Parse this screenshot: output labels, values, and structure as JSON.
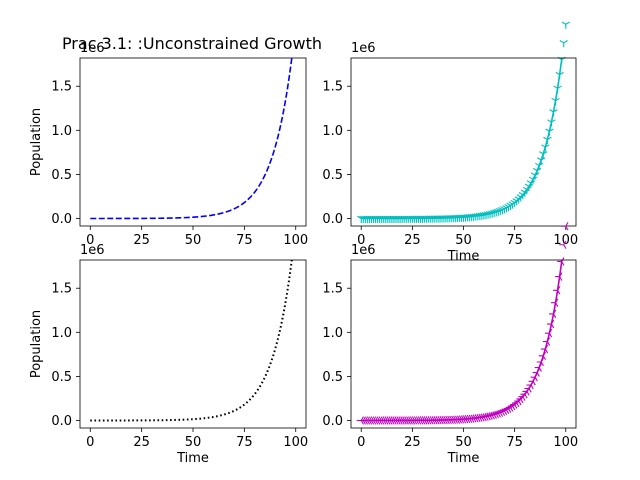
{
  "figure": {
    "title": "Prac 3.1: :Unconstrained Growth"
  },
  "chart_data": [
    {
      "type": "line",
      "panel": "top-left",
      "title": "",
      "xlabel": "",
      "ylabel": "Population",
      "xlim": [
        -5,
        105
      ],
      "ylim": [
        -85000,
        1820000
      ],
      "xticks": [
        0,
        25,
        50,
        75,
        100
      ],
      "yticks": [
        0,
        0.5,
        1.0,
        1.5
      ],
      "ytick_labels": [
        "0.0",
        "0.5",
        "1.0",
        "1.5"
      ],
      "y_multiplier_label": "1e6",
      "grid": false,
      "series": [
        {
          "model": "exponential",
          "x_range": [
            0,
            100
          ],
          "step": 1,
          "y0": 100,
          "rate": 0.1,
          "color": "#0000ff",
          "line_style": "dashed",
          "marker": "none"
        }
      ]
    },
    {
      "type": "line",
      "panel": "top-right",
      "title": "",
      "xlabel": "Time",
      "ylabel": "",
      "xlim": [
        -5,
        105
      ],
      "ylim": [
        -85000,
        1820000
      ],
      "xticks": [
        0,
        25,
        50,
        75,
        100
      ],
      "yticks": [
        0,
        0.5,
        1.0,
        1.5
      ],
      "ytick_labels": [
        "0.0",
        "0.5",
        "1.0",
        "1.5"
      ],
      "y_multiplier_label": "1e6",
      "grid": false,
      "series": [
        {
          "model": "exponential",
          "x_range": [
            0,
            100
          ],
          "step": 1,
          "y0": 100,
          "rate": 0.1,
          "color": "#00bfbf",
          "line_style": "solid",
          "marker": "tri_down"
        }
      ]
    },
    {
      "type": "line",
      "panel": "bottom-left",
      "title": "",
      "xlabel": "Time",
      "ylabel": "Population",
      "xlim": [
        -5,
        105
      ],
      "ylim": [
        -85000,
        1820000
      ],
      "xticks": [
        0,
        25,
        50,
        75,
        100
      ],
      "yticks": [
        0,
        0.5,
        1.0,
        1.5
      ],
      "ytick_labels": [
        "0.0",
        "0.5",
        "1.0",
        "1.5"
      ],
      "y_multiplier_label": "1e6",
      "grid": false,
      "series": [
        {
          "model": "exponential",
          "x_range": [
            0,
            100
          ],
          "step": 1,
          "y0": 100,
          "rate": 0.1,
          "color": "#000000",
          "line_style": "dotted",
          "marker": "none"
        }
      ]
    },
    {
      "type": "line",
      "panel": "bottom-right",
      "title": "",
      "xlabel": "Time",
      "ylabel": "",
      "xlim": [
        -5,
        105
      ],
      "ylim": [
        -85000,
        1820000
      ],
      "xticks": [
        0,
        25,
        50,
        75,
        100
      ],
      "yticks": [
        0,
        0.5,
        1.0,
        1.5
      ],
      "ytick_labels": [
        "0.0",
        "0.5",
        "1.0",
        "1.5"
      ],
      "y_multiplier_label": "1e6",
      "grid": false,
      "series": [
        {
          "model": "exponential",
          "x_range": [
            0,
            100
          ],
          "step": 1,
          "y0": 100,
          "rate": 0.1,
          "color": "#bf00bf",
          "line_style": "solid",
          "marker": "tri_left"
        }
      ]
    }
  ]
}
